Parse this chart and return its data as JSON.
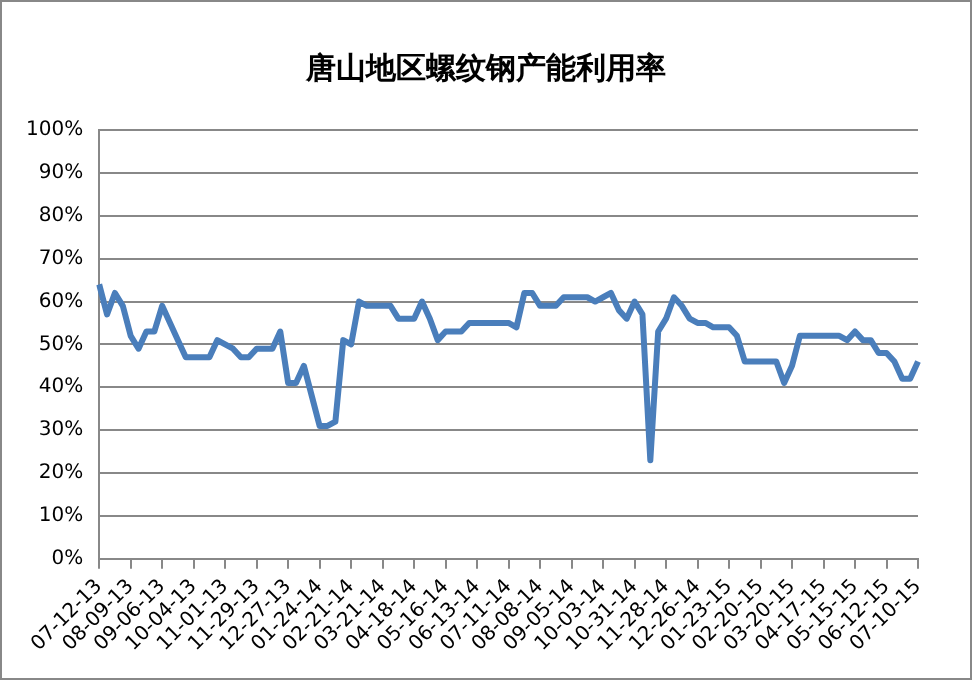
{
  "chart_data": {
    "type": "line",
    "title": "唐山地区螺纹钢产能利用率",
    "categories": [
      "07-12-13",
      null,
      null,
      null,
      "08-09-13",
      null,
      null,
      null,
      "09-06-13",
      null,
      null,
      null,
      "10-04-13",
      null,
      null,
      null,
      "11-01-13",
      null,
      null,
      null,
      "11-29-13",
      null,
      null,
      null,
      "12-27-13",
      null,
      null,
      null,
      "01-24-14",
      null,
      null,
      null,
      "02-21-14",
      null,
      null,
      null,
      "03-21-14",
      null,
      null,
      null,
      "04-18-14",
      null,
      null,
      null,
      "05-16-14",
      null,
      null,
      null,
      "06-13-14",
      null,
      null,
      null,
      "07-11-14",
      null,
      null,
      null,
      "08-08-14",
      null,
      null,
      null,
      "09-05-14",
      null,
      null,
      null,
      "10-03-14",
      null,
      null,
      null,
      "10-31-14",
      null,
      null,
      null,
      "11-28-14",
      null,
      null,
      null,
      "12-26-14",
      null,
      null,
      null,
      "01-23-15",
      null,
      null,
      null,
      "02-20-15",
      null,
      null,
      null,
      "03-20-15",
      null,
      null,
      null,
      "04-17-15",
      null,
      null,
      null,
      "05-15-15",
      null,
      null,
      null,
      "06-12-15",
      null,
      null,
      null,
      "07-10-15"
    ],
    "series": [
      {
        "color": "#4a7ebb",
        "values": [
          64,
          57,
          62,
          59,
          52,
          49,
          53,
          53,
          59,
          55,
          51,
          47,
          47,
          47,
          47,
          51,
          50,
          49,
          47,
          47,
          49,
          49,
          49,
          53,
          41,
          41,
          45,
          38,
          31,
          31,
          32,
          51,
          50,
          60,
          59,
          59,
          59,
          59,
          56,
          56,
          56,
          60,
          56,
          51,
          53,
          53,
          53,
          55,
          55,
          55,
          55,
          55,
          55,
          54,
          62,
          62,
          59,
          59,
          59,
          61,
          61,
          61,
          61,
          60,
          61,
          62,
          58,
          56,
          60,
          57,
          23,
          53,
          56,
          61,
          59,
          56,
          55,
          55,
          54,
          54,
          54,
          52,
          46,
          46,
          46,
          46,
          46,
          41,
          45,
          52,
          52,
          52,
          52,
          52,
          52,
          51,
          53,
          51,
          51,
          48,
          48,
          46,
          42,
          42,
          46
        ]
      }
    ],
    "ylim": [
      0,
      100
    ],
    "yticks": [
      {
        "value": 0,
        "label": "0%"
      },
      {
        "value": 10,
        "label": "10%"
      },
      {
        "value": 20,
        "label": "20%"
      },
      {
        "value": 30,
        "label": "30%"
      },
      {
        "value": 40,
        "label": "40%"
      },
      {
        "value": 50,
        "label": "50%"
      },
      {
        "value": 60,
        "label": "60%"
      },
      {
        "value": 70,
        "label": "70%"
      },
      {
        "value": 80,
        "label": "80%"
      },
      {
        "value": 90,
        "label": "90%"
      },
      {
        "value": 100,
        "label": "100%"
      }
    ],
    "grid": "y",
    "legend": false,
    "marker": "none",
    "line_style": "solid"
  }
}
